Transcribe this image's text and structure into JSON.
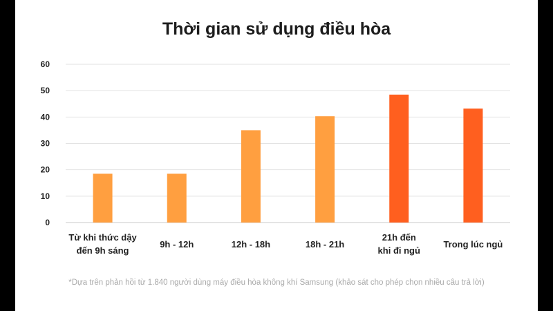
{
  "chart_data": {
    "type": "bar",
    "title": "Thời gian sử dụng điều hòa",
    "categories": [
      [
        "Từ khi thức dậy",
        "đến 9h sáng"
      ],
      [
        "9h - 12h"
      ],
      [
        "12h - 18h"
      ],
      [
        "18h - 21h"
      ],
      [
        "21h đến",
        "khi đi ngủ"
      ],
      [
        "Trong lúc ngủ"
      ]
    ],
    "values": [
      18.5,
      18.5,
      35,
      40.3,
      48.5,
      43.2
    ],
    "bar_colors": [
      "#ff9f40",
      "#ff9f40",
      "#ff9f40",
      "#ff9f40",
      "#ff5f1f",
      "#ff5f1f"
    ],
    "ylim": [
      0,
      60
    ],
    "yticks": [
      0,
      10,
      20,
      30,
      40,
      50,
      60
    ],
    "grid": true,
    "xlabel": "",
    "ylabel": ""
  },
  "footnote": "*Dựa trên phản hồi từ 1.840 người dùng máy điều hòa không khí Samsung (khảo sát cho phép chọn nhiều câu trả lời)"
}
